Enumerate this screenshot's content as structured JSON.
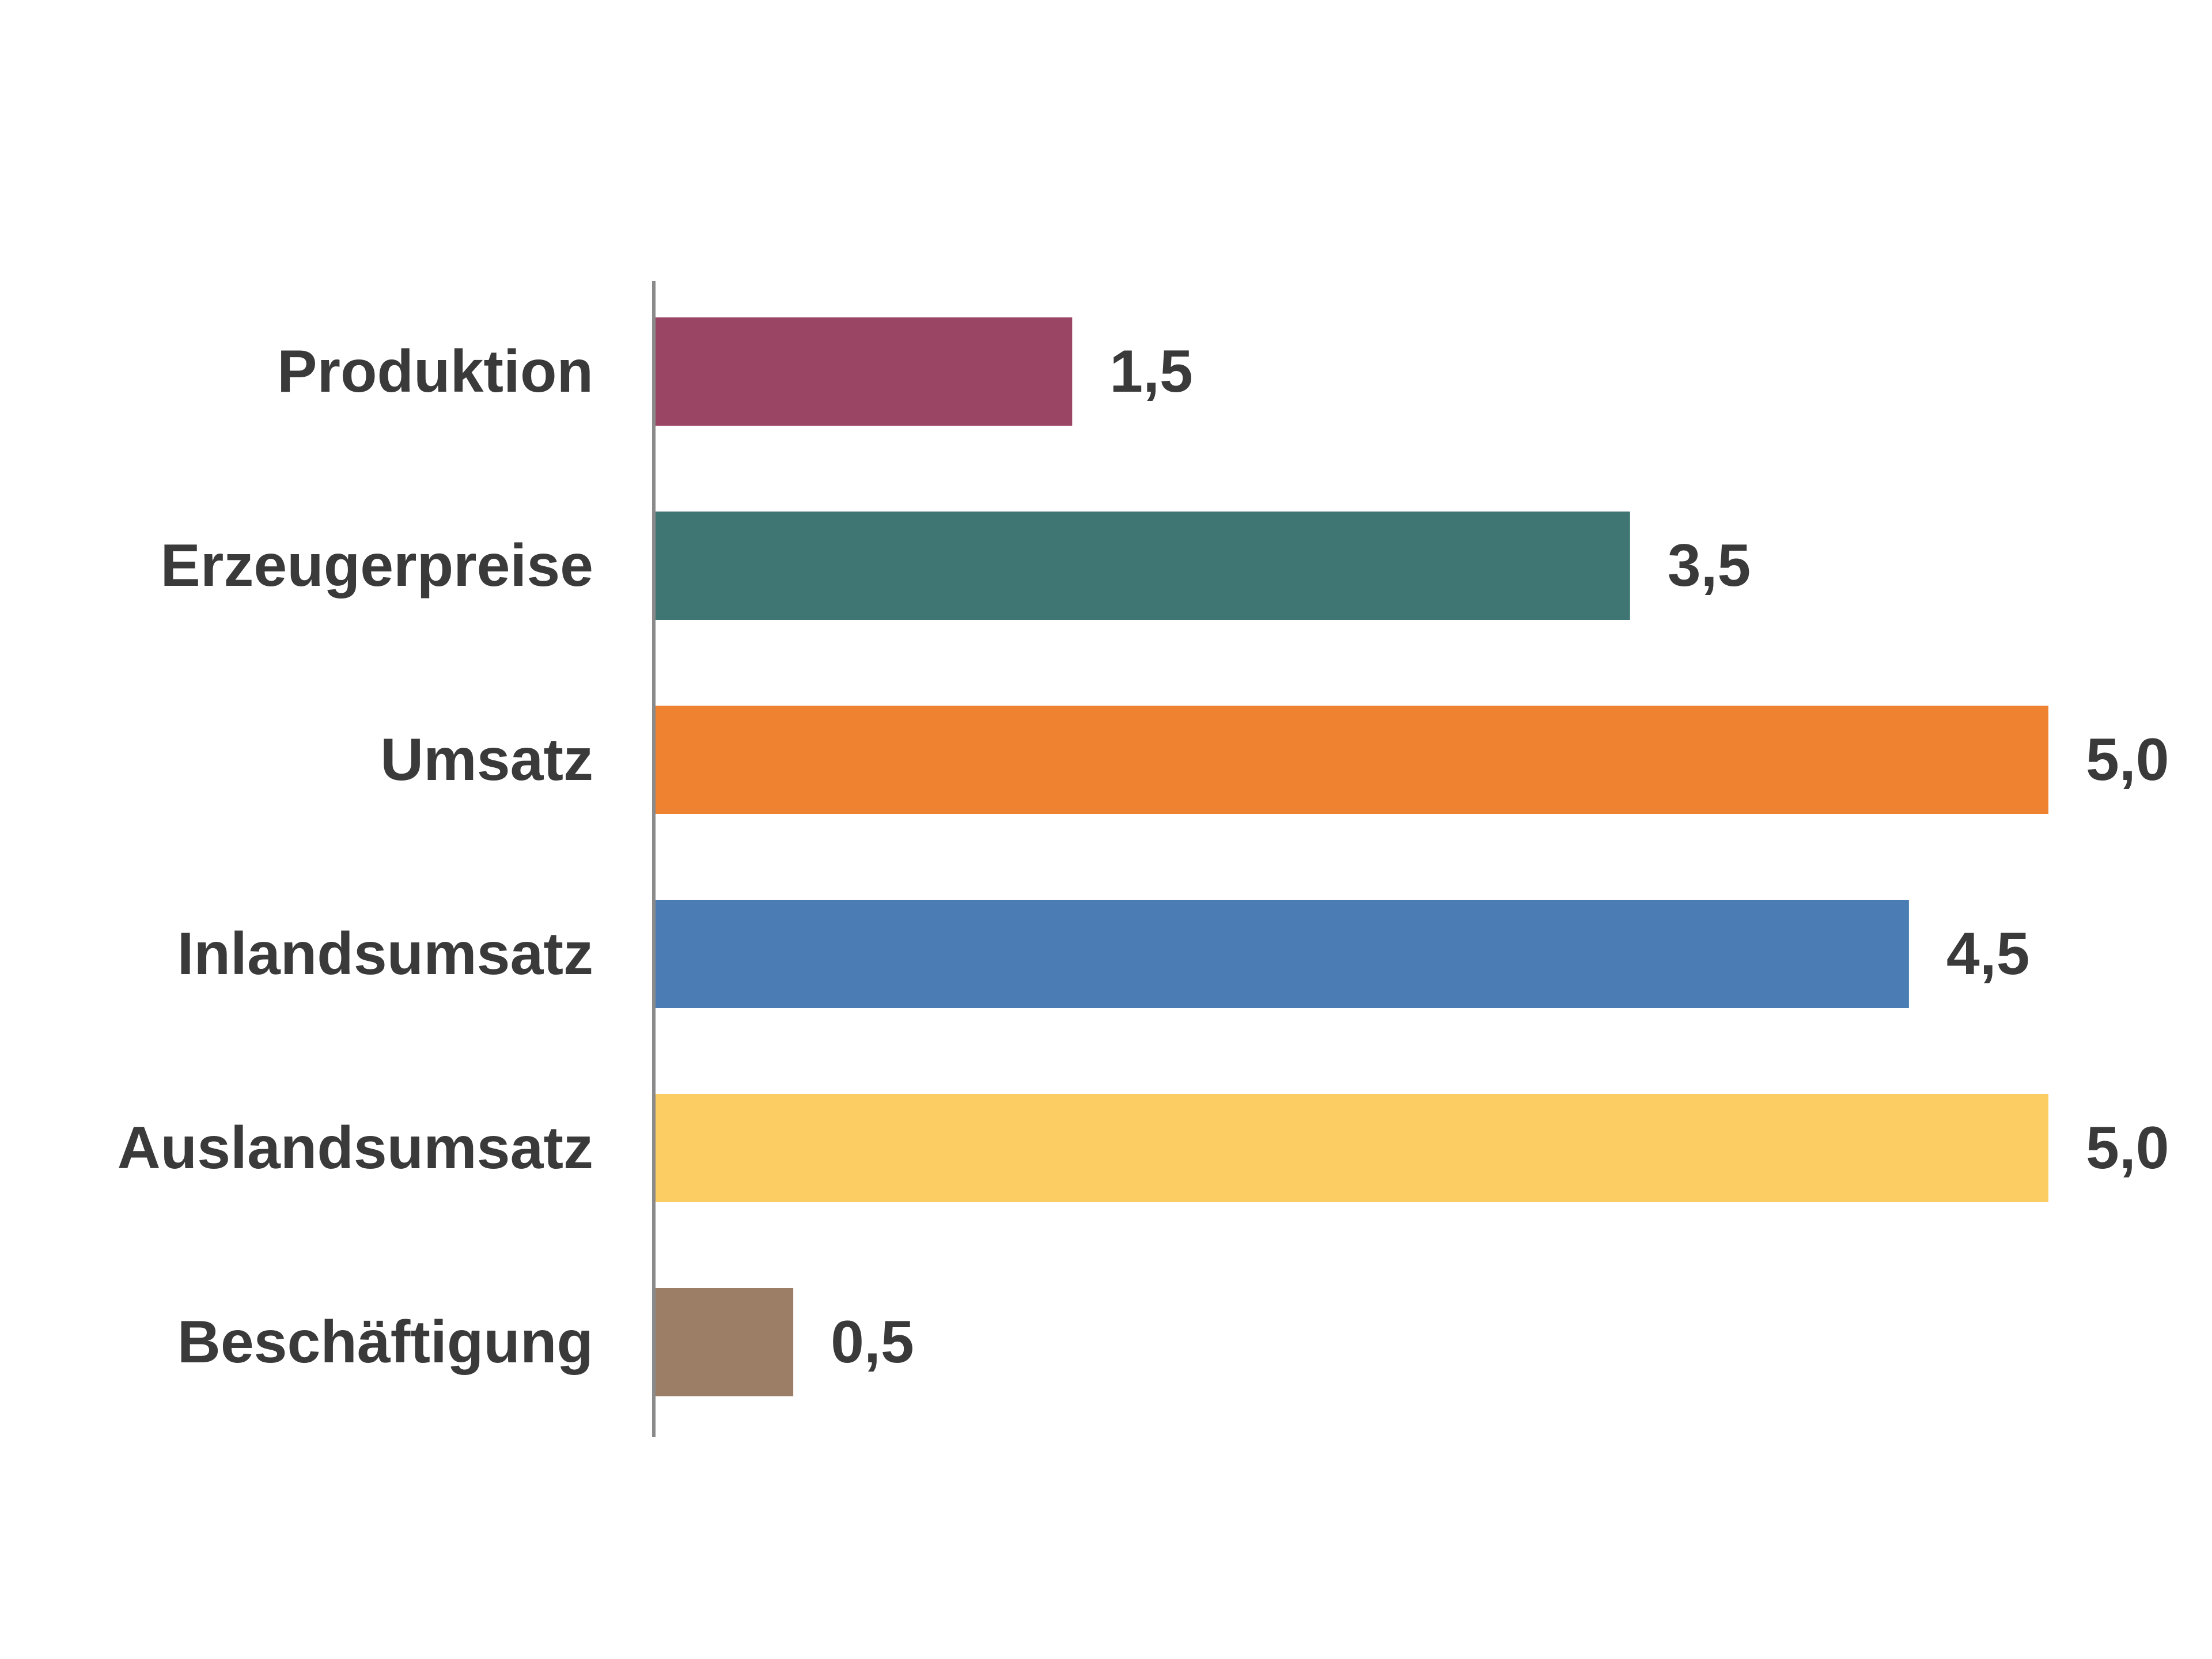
{
  "chart_data": {
    "type": "bar",
    "orientation": "horizontal",
    "categories": [
      "Produktion",
      "Erzeugerpreise",
      "Umsatz",
      "Inlandsumsatz",
      "Auslandsumsatz",
      "Beschäftigung"
    ],
    "values": [
      1.5,
      3.5,
      5.0,
      4.5,
      5.0,
      0.5
    ],
    "value_labels": [
      "1,5",
      "3,5",
      "5,0",
      "4,5",
      "5,0",
      "0,5"
    ],
    "colors": [
      "#9b4564",
      "#3f7673",
      "#ee8230",
      "#4b7db4",
      "#fccd62",
      "#9c7e67"
    ],
    "axis_color": "#8a8a8a",
    "xlim": [
      0,
      5.0
    ],
    "grid": false,
    "legend": "none"
  }
}
